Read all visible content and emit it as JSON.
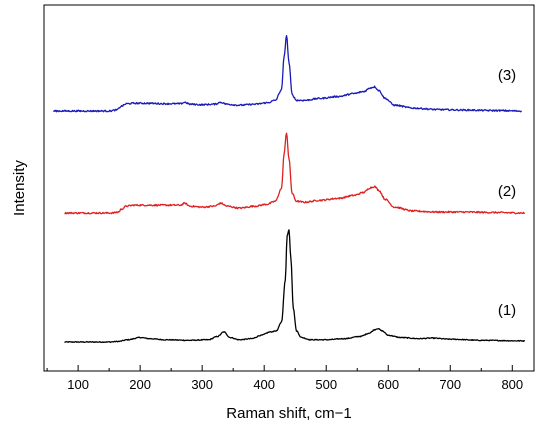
{
  "chart_data": {
    "type": "line",
    "title": "",
    "xlabel": "Raman shift, cm−1",
    "ylabel": "Intensity",
    "xlim": [
      45,
      835
    ],
    "xticks": [
      100,
      200,
      300,
      400,
      500,
      600,
      700,
      800
    ],
    "xtick_labels": [
      "100",
      "200",
      "300",
      "400",
      "500",
      "600",
      "700",
      "800"
    ],
    "y_ticks_shown": false,
    "grid": false,
    "legend": "none",
    "y_units": "arbitrary (spectra vertically offset)",
    "series": [
      {
        "name": "(1)",
        "color": "#000000",
        "baseline": 0,
        "x": [
          78,
          150,
          165,
          180,
          200,
          215,
          240,
          280,
          310,
          325,
          335,
          345,
          360,
          380,
          395,
          410,
          420,
          428,
          434,
          437,
          440,
          443,
          447,
          452,
          460,
          475,
          500,
          530,
          555,
          570,
          578,
          583,
          590,
          600,
          620,
          650,
          670,
          700,
          750,
          820
        ],
        "y": [
          0.0,
          0.0,
          0.005,
          0.02,
          0.04,
          0.03,
          0.02,
          0.015,
          0.02,
          0.05,
          0.09,
          0.04,
          0.02,
          0.03,
          0.06,
          0.09,
          0.1,
          0.18,
          0.55,
          0.95,
          1.0,
          0.75,
          0.3,
          0.1,
          0.04,
          0.02,
          0.02,
          0.03,
          0.05,
          0.08,
          0.11,
          0.12,
          0.1,
          0.06,
          0.04,
          0.03,
          0.035,
          0.025,
          0.015,
          0.01
        ]
      },
      {
        "name": "(2)",
        "color": "#e02020",
        "baseline": 1,
        "x": [
          78,
          155,
          165,
          170,
          178,
          190,
          210,
          240,
          265,
          272,
          280,
          300,
          320,
          330,
          340,
          360,
          385,
          405,
          418,
          428,
          432,
          436,
          440,
          445,
          452,
          465,
          490,
          520,
          545,
          560,
          572,
          578,
          585,
          595,
          610,
          640,
          680,
          720,
          770,
          820
        ],
        "y": [
          0.0,
          0.0,
          0.01,
          0.04,
          0.07,
          0.08,
          0.08,
          0.08,
          0.08,
          0.1,
          0.07,
          0.06,
          0.07,
          0.1,
          0.07,
          0.05,
          0.07,
          0.09,
          0.12,
          0.25,
          0.6,
          0.82,
          0.55,
          0.2,
          0.12,
          0.11,
          0.13,
          0.15,
          0.18,
          0.21,
          0.26,
          0.27,
          0.23,
          0.14,
          0.06,
          0.02,
          0.01,
          0.01,
          0.005,
          0.0
        ]
      },
      {
        "name": "(3)",
        "color": "#1a1ab8",
        "baseline": 2,
        "x": [
          60,
          150,
          162,
          170,
          178,
          190,
          210,
          240,
          265,
          272,
          280,
          300,
          320,
          330,
          340,
          360,
          385,
          405,
          418,
          428,
          432,
          436,
          440,
          445,
          452,
          465,
          490,
          520,
          545,
          560,
          572,
          578,
          585,
          595,
          610,
          640,
          680,
          720,
          770,
          815
        ],
        "y": [
          0.0,
          0.0,
          0.01,
          0.05,
          0.075,
          0.08,
          0.08,
          0.075,
          0.075,
          0.09,
          0.07,
          0.065,
          0.07,
          0.09,
          0.07,
          0.06,
          0.07,
          0.085,
          0.11,
          0.22,
          0.55,
          0.78,
          0.5,
          0.17,
          0.11,
          0.11,
          0.13,
          0.15,
          0.18,
          0.2,
          0.24,
          0.25,
          0.21,
          0.13,
          0.06,
          0.03,
          0.015,
          0.01,
          0.005,
          0.0
        ]
      }
    ]
  }
}
